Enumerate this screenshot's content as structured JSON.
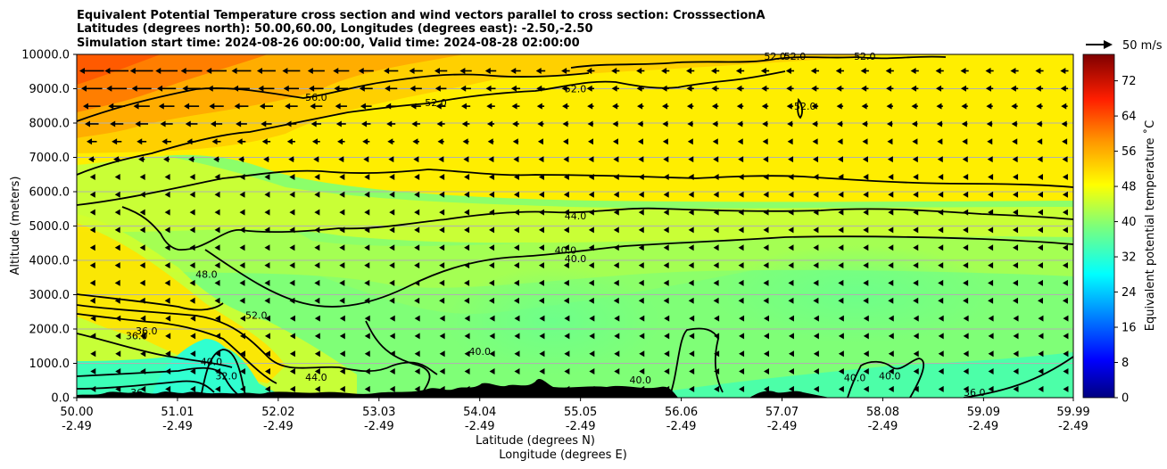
{
  "chart_data": {
    "type": "heatmap",
    "title_lines": [
      "Equivalent Potential Temperature cross section and wind vectors parallel to cross section: CrosssectionA",
      "Latitudes (degrees north): 50.00,60.00, Longitudes (degrees east): -2.50,-2.50",
      "Simulation start time: 2024-08-26 00:00:00, Valid time: 2024-08-28 02:00:00"
    ],
    "ylabel": "Altitude (meters)",
    "xlabel_lines": [
      "Latitude (degrees N)",
      "Longitude (degrees E)"
    ],
    "ylim": [
      0,
      10000
    ],
    "yticks": [
      "0.0",
      "1000.0",
      "2000.0",
      "3000.0",
      "4000.0",
      "5000.0",
      "6000.0",
      "7000.0",
      "8000.0",
      "9000.0",
      "10000.0"
    ],
    "xlim_lat": [
      50.0,
      59.99
    ],
    "xticks_lat": [
      "50.00",
      "51.01",
      "52.02",
      "53.03",
      "54.04",
      "55.05",
      "56.06",
      "57.07",
      "58.08",
      "59.09",
      "59.99"
    ],
    "xticks_lon": [
      "-2.49",
      "-2.49",
      "-2.49",
      "-2.49",
      "-2.49",
      "-2.49",
      "-2.49",
      "-2.49",
      "-2.49",
      "-2.49",
      "-2.49"
    ],
    "grid": "horizontal",
    "quiver_key": "50 m/s",
    "colorbar": {
      "label": "Equivalent potential temperature ˚C",
      "ticks": [
        "0",
        "8",
        "16",
        "24",
        "32",
        "40",
        "48",
        "56",
        "64",
        "72"
      ],
      "range": [
        0,
        78
      ],
      "colormap": "jet"
    },
    "contour_labels": [
      {
        "text": "56.0",
        "lat": 52.4,
        "alt": 8750
      },
      {
        "text": "52.0",
        "lat": 53.6,
        "alt": 8600
      },
      {
        "text": "52.0",
        "lat": 55.0,
        "alt": 9000
      },
      {
        "text": "52.0",
        "lat": 57.3,
        "alt": 8500
      },
      {
        "text": "52.0",
        "lat": 57.0,
        "alt": 9950
      },
      {
        "text": "52.0",
        "lat": 57.2,
        "alt": 9950
      },
      {
        "text": "52.0",
        "lat": 57.9,
        "alt": 9950
      },
      {
        "text": "44.0",
        "lat": 55.0,
        "alt": 5300
      },
      {
        "text": "40.0",
        "lat": 54.9,
        "alt": 4300
      },
      {
        "text": "40.0",
        "lat": 55.0,
        "alt": 4050
      },
      {
        "text": "48.0",
        "lat": 51.3,
        "alt": 3600
      },
      {
        "text": "52.0",
        "lat": 51.8,
        "alt": 2400
      },
      {
        "text": "36.0",
        "lat": 50.7,
        "alt": 1950
      },
      {
        "text": "36.0",
        "lat": 50.6,
        "alt": 1800
      },
      {
        "text": "40.0",
        "lat": 51.35,
        "alt": 1050
      },
      {
        "text": "32.0",
        "lat": 51.5,
        "alt": 630
      },
      {
        "text": "44.0",
        "lat": 52.4,
        "alt": 600
      },
      {
        "text": "40.0",
        "lat": 54.04,
        "alt": 1350
      },
      {
        "text": "40.0",
        "lat": 55.65,
        "alt": 520
      },
      {
        "text": "40.0",
        "lat": 57.8,
        "alt": 580
      },
      {
        "text": "40.0",
        "lat": 58.15,
        "alt": 630
      },
      {
        "text": "36.0",
        "lat": 59.0,
        "alt": 150
      },
      {
        "text": "36",
        "lat": 50.6,
        "alt": 150
      }
    ],
    "wind": "arrows pointing in -latitude direction, strongest (long) in upper levels near 50-53N, short elsewhere"
  }
}
